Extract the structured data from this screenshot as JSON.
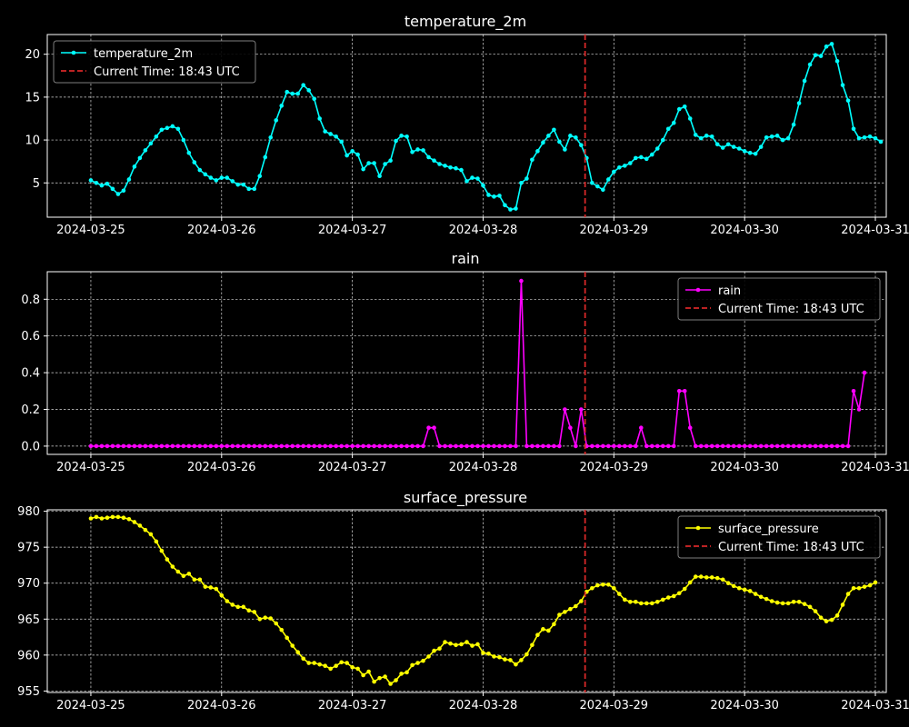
{
  "colors": {
    "background": "#000000",
    "axes": "#ffffff",
    "grid": "#ffffff",
    "current_time_line": "#d62728",
    "temperature": "#00ffff",
    "rain": "#ff00ff",
    "pressure": "#ffff00"
  },
  "x_tick_labels": [
    "2024-03-25",
    "2024-03-26",
    "2024-03-27",
    "2024-03-28",
    "2024-03-29",
    "2024-03-30",
    "2024-03-31"
  ],
  "current_time": {
    "label": "Current Time: 18:43 UTC",
    "x": "2024-03-28T18:43"
  },
  "chart_data": [
    {
      "type": "line",
      "title": "temperature_2m",
      "legend": "top-left",
      "grid": true,
      "x_start": "2024-03-25T00:00",
      "x_step_hours": 1,
      "xlim": [
        "2024-03-24T16:00",
        "2024-03-31T02:00"
      ],
      "ylim": [
        1.0,
        22.3
      ],
      "yticks": [
        5,
        10,
        15,
        20
      ],
      "series": [
        {
          "name": "temperature_2m",
          "color": "#00ffff",
          "values": [
            5.3,
            5.0,
            4.7,
            4.9,
            4.3,
            3.7,
            4.1,
            5.4,
            6.9,
            7.9,
            8.8,
            9.6,
            10.4,
            11.2,
            11.4,
            11.6,
            11.3,
            10.0,
            8.5,
            7.4,
            6.5,
            6.0,
            5.6,
            5.3,
            5.6,
            5.6,
            5.2,
            4.8,
            4.8,
            4.3,
            4.3,
            5.8,
            8.0,
            10.3,
            12.3,
            14.0,
            15.6,
            15.4,
            15.4,
            16.4,
            15.8,
            14.8,
            12.5,
            11.0,
            10.7,
            10.4,
            9.8,
            8.2,
            8.7,
            8.3,
            6.6,
            7.3,
            7.3,
            5.8,
            7.2,
            7.6,
            9.9,
            10.5,
            10.4,
            8.6,
            8.9,
            8.8,
            8.0,
            7.6,
            7.2,
            7.0,
            6.8,
            6.7,
            6.5,
            5.2,
            5.6,
            5.5,
            4.7,
            3.6,
            3.4,
            3.5,
            2.4,
            1.9,
            2.0,
            5.0,
            5.5,
            7.7,
            8.7,
            9.7,
            10.5,
            11.2,
            9.8,
            8.9,
            10.5,
            10.3,
            9.4,
            7.9,
            5.0,
            4.6,
            4.2,
            5.4,
            6.3,
            6.8,
            7.0,
            7.3,
            7.9,
            8.0,
            7.8,
            8.3,
            9.0,
            10.0,
            11.3,
            12.0,
            13.6,
            13.9,
            12.5,
            10.6,
            10.2,
            10.5,
            10.4,
            9.5,
            9.1,
            9.5,
            9.2,
            9.0,
            8.7,
            8.5,
            8.4,
            9.2,
            10.3,
            10.4,
            10.5,
            10.0,
            10.2,
            11.8,
            14.3,
            16.9,
            18.8,
            19.9,
            19.8,
            20.9,
            21.2,
            19.2,
            16.4,
            14.6,
            11.3,
            10.2,
            10.3,
            10.4,
            10.2,
            9.8
          ]
        }
      ]
    },
    {
      "type": "line",
      "title": "rain",
      "legend": "top-right",
      "grid": true,
      "x_start": "2024-03-25T00:00",
      "x_step_hours": 1,
      "xlim": [
        "2024-03-24T16:00",
        "2024-03-31T02:00"
      ],
      "ylim": [
        -0.045,
        0.95
      ],
      "yticks": [
        0.0,
        0.2,
        0.4,
        0.6,
        0.8
      ],
      "series": [
        {
          "name": "rain",
          "color": "#ff00ff",
          "values": [
            0,
            0,
            0,
            0,
            0,
            0,
            0,
            0,
            0,
            0,
            0,
            0,
            0,
            0,
            0,
            0,
            0,
            0,
            0,
            0,
            0,
            0,
            0,
            0,
            0,
            0,
            0,
            0,
            0,
            0,
            0,
            0,
            0,
            0,
            0,
            0,
            0,
            0,
            0,
            0,
            0,
            0,
            0,
            0,
            0,
            0,
            0,
            0,
            0,
            0,
            0,
            0,
            0,
            0,
            0,
            0,
            0,
            0,
            0,
            0,
            0,
            0,
            0.1,
            0.1,
            0,
            0,
            0,
            0,
            0,
            0,
            0,
            0,
            0,
            0,
            0,
            0,
            0,
            0,
            0,
            0.9,
            0,
            0,
            0,
            0,
            0,
            0,
            0,
            0.2,
            0.1,
            0,
            0.2,
            0,
            0,
            0,
            0,
            0,
            0,
            0,
            0,
            0,
            0,
            0.1,
            0,
            0,
            0,
            0,
            0,
            0,
            0.3,
            0.3,
            0.1,
            0,
            0,
            0,
            0,
            0,
            0,
            0,
            0,
            0,
            0,
            0,
            0,
            0,
            0,
            0,
            0,
            0,
            0,
            0,
            0,
            0,
            0,
            0,
            0,
            0,
            0,
            0,
            0,
            0,
            0.3,
            0.2,
            0.4
          ]
        }
      ]
    },
    {
      "type": "line",
      "title": "surface_pressure",
      "legend": "top-right",
      "grid": true,
      "x_start": "2024-03-25T00:00",
      "x_step_hours": 1,
      "xlim": [
        "2024-03-24T16:00",
        "2024-03-31T02:00"
      ],
      "ylim": [
        954.8,
        980.2
      ],
      "yticks": [
        955,
        960,
        965,
        970,
        975,
        980
      ],
      "series": [
        {
          "name": "surface_pressure",
          "color": "#ffff00",
          "values": [
            979.0,
            979.2,
            979.0,
            979.1,
            979.2,
            979.2,
            979.1,
            978.9,
            978.5,
            978.0,
            977.4,
            976.8,
            975.8,
            974.5,
            973.3,
            972.3,
            971.6,
            971.0,
            971.3,
            970.5,
            970.5,
            969.5,
            969.4,
            969.2,
            968.3,
            967.5,
            967.0,
            966.7,
            966.7,
            966.2,
            966.0,
            965.0,
            965.2,
            965.1,
            964.4,
            963.5,
            962.4,
            961.3,
            960.4,
            959.5,
            958.9,
            958.9,
            958.7,
            958.5,
            958.1,
            958.5,
            959.0,
            958.9,
            958.3,
            958.1,
            957.2,
            957.7,
            956.3,
            956.8,
            957.0,
            956.0,
            956.5,
            957.4,
            957.6,
            958.6,
            958.9,
            959.2,
            959.8,
            960.6,
            960.9,
            961.8,
            961.6,
            961.4,
            961.5,
            961.8,
            961.3,
            961.5,
            960.3,
            960.2,
            959.8,
            959.7,
            959.4,
            959.3,
            958.7,
            959.3,
            960.1,
            961.4,
            962.8,
            963.6,
            963.4,
            964.3,
            965.6,
            966.0,
            966.4,
            966.8,
            967.5,
            968.8,
            969.3,
            969.7,
            969.8,
            969.8,
            969.3,
            968.5,
            967.7,
            967.4,
            967.4,
            967.2,
            967.2,
            967.2,
            967.4,
            967.7,
            968.0,
            968.2,
            968.6,
            969.2,
            970.1,
            970.9,
            970.9,
            970.8,
            970.8,
            970.7,
            970.5,
            970.0,
            969.6,
            969.3,
            969.1,
            968.9,
            968.5,
            968.1,
            967.8,
            967.5,
            967.3,
            967.2,
            967.2,
            967.4,
            967.4,
            967.1,
            966.7,
            966.1,
            965.2,
            964.7,
            964.9,
            965.5,
            967.0,
            968.5,
            969.3,
            969.3,
            969.5,
            969.7,
            970.1
          ]
        }
      ]
    }
  ]
}
